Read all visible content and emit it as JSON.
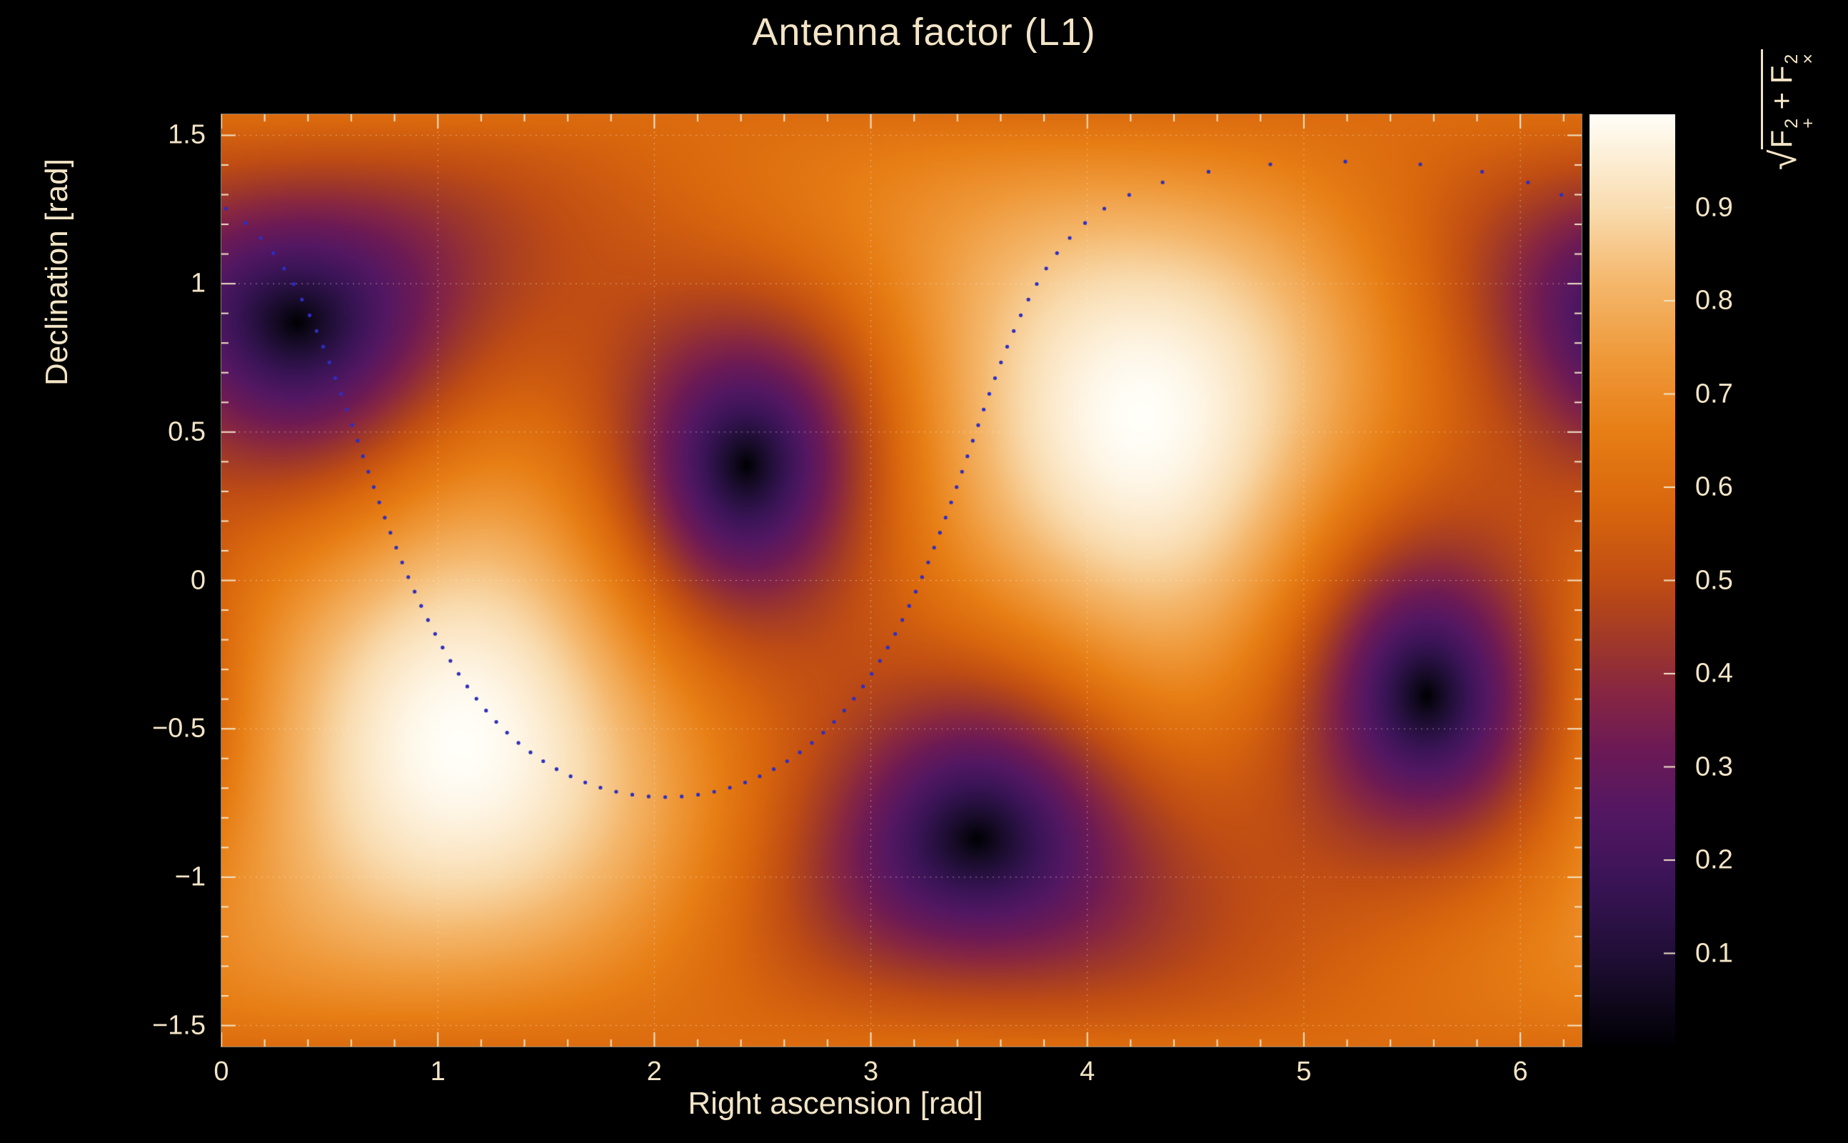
{
  "figure": {
    "title": "Antenna factor (L1)",
    "background": "#000000",
    "text_color": "#f2e4c6"
  },
  "chart_data": {
    "type": "heatmap",
    "title": "Antenna factor (L1)",
    "xlabel": "Right ascension [rad]",
    "ylabel": "Declination [rad]",
    "zlabel": {
      "radical": "√",
      "f1": "F",
      "sup1": "2",
      "sub1": "+",
      "plus": " + ",
      "f2": "F",
      "sup2": "2",
      "sub2": "×"
    },
    "x_range": [
      0,
      6.2832
    ],
    "y_range": [
      -1.5708,
      1.5708
    ],
    "z_range": [
      0,
      1
    ],
    "grid": true,
    "legend": "none",
    "axis_color": "#f2e4c6",
    "grid_color": "rgba(255,246,224,0.5)",
    "x_ticks": [
      {
        "v": 0,
        "label": "0"
      },
      {
        "v": 1,
        "label": "1"
      },
      {
        "v": 2,
        "label": "2"
      },
      {
        "v": 3,
        "label": "3"
      },
      {
        "v": 4,
        "label": "4"
      },
      {
        "v": 5,
        "label": "5"
      },
      {
        "v": 6,
        "label": "6"
      }
    ],
    "x_minor_step": 0.2,
    "y_ticks": [
      {
        "v": -1.5,
        "label": "−1.5"
      },
      {
        "v": -1,
        "label": "−1"
      },
      {
        "v": -0.5,
        "label": "−0.5"
      },
      {
        "v": 0,
        "label": "0"
      },
      {
        "v": 0.5,
        "label": "0.5"
      },
      {
        "v": 1,
        "label": "1"
      },
      {
        "v": 1.5,
        "label": "1.5"
      }
    ],
    "y_minor_step": 0.1,
    "colorbar_ticks": [
      {
        "v": 0.1,
        "label": "0.1"
      },
      {
        "v": 0.2,
        "label": "0.2"
      },
      {
        "v": 0.3,
        "label": "0.3"
      },
      {
        "v": 0.4,
        "label": "0.4"
      },
      {
        "v": 0.5,
        "label": "0.5"
      },
      {
        "v": 0.6,
        "label": "0.6"
      },
      {
        "v": 0.7,
        "label": "0.7"
      },
      {
        "v": 0.8,
        "label": "0.8"
      },
      {
        "v": 0.9,
        "label": "0.9"
      }
    ],
    "colormap": {
      "stops": [
        [
          0.0,
          "#000003"
        ],
        [
          0.06,
          "#140a23"
        ],
        [
          0.12,
          "#271040"
        ],
        [
          0.18,
          "#3b1457"
        ],
        [
          0.25,
          "#531762"
        ],
        [
          0.32,
          "#6c1a55"
        ],
        [
          0.38,
          "#872642"
        ],
        [
          0.44,
          "#a23a27"
        ],
        [
          0.5,
          "#c04d13"
        ],
        [
          0.58,
          "#d9670d"
        ],
        [
          0.66,
          "#e77e15"
        ],
        [
          0.74,
          "#ef993a"
        ],
        [
          0.82,
          "#f4b76c"
        ],
        [
          0.9,
          "#f9dcb0"
        ],
        [
          0.96,
          "#fdf0da"
        ],
        [
          1.0,
          "#fffef8"
        ]
      ]
    },
    "model": {
      "kind": "interferometer_antenna_pattern",
      "expression": "sqrt(F_plus^2 + F_cross^2)",
      "maximum": {
        "ra": 4.25,
        "dec": 0.55,
        "value": 1.0
      },
      "second_maximum": {
        "ra": 1.11,
        "dec": -0.55,
        "value": 1.0
      },
      "minimum_value": 0.0,
      "zeros": [
        [
          0.35,
          0.87
        ],
        [
          2.43,
          0.39
        ],
        [
          3.49,
          -0.87
        ],
        [
          5.57,
          -0.39
        ]
      ]
    },
    "overlay_track": {
      "style": "dotted",
      "color": "#2e2ec0",
      "n_points": 104,
      "dot_radius_px": 2.6,
      "small_circle": {
        "center_ra": 2.05,
        "center_dec": 0.5,
        "radius": 1.23
      }
    }
  }
}
